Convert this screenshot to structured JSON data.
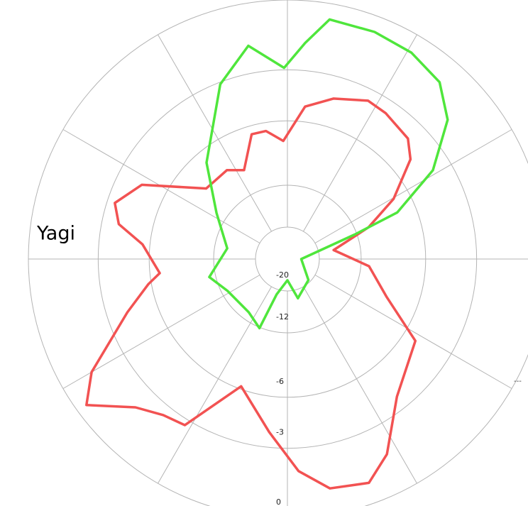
{
  "chart_data": {
    "type": "polar_line",
    "title": "Yagi",
    "annotation": "---",
    "log_scale": true,
    "rlim": [
      -30,
      0
    ],
    "rticks": [
      -20,
      -12,
      -6,
      -3,
      0
    ],
    "thetaticks": [
      0,
      30,
      60,
      90,
      120,
      150,
      180,
      210,
      240,
      270,
      300,
      330
    ],
    "grid": true,
    "series": [
      {
        "color": "#f25252",
        "angles": [
          358,
          6.6,
          16,
          27,
          34,
          45,
          51,
          60.5,
          68.6,
          79,
          95,
          111,
          122.6,
          141.5,
          153,
          160,
          169.5,
          177,
          186,
          200,
          211.7,
          218.5,
          225.7,
          234,
          240,
          251.6,
          259.8,
          263.7,
          275.8,
          281.7,
          288,
          297,
          311,
          325.8,
          334,
          344,
          350.5
        ],
        "values": [
          -7.5,
          -5.0,
          -4.2,
          -3.6,
          -3.7,
          -4.0,
          -4.7,
          -7.2,
          -10.4,
          -16.3,
          -11.0,
          -8.5,
          -5.1,
          -3.7,
          -1.6,
          -0.8,
          -1.0,
          -1.9,
          -3.8,
          -6.2,
          -2.7,
          -2.5,
          -1.9,
          -0.4,
          -1.3,
          -4.1,
          -5.8,
          -6.7,
          -5.5,
          -3.9,
          -3.4,
          -4.4,
          -8.4,
          -8.4,
          -9.2,
          -6.6,
          -6.6
        ]
      },
      {
        "color": "#4fe63c",
        "angles": [
          359,
          4.7,
          10,
          21,
          31,
          40.7,
          49,
          58.6,
          67,
          70,
          90,
          135,
          165,
          180,
          197,
          202,
          216,
          242,
          257,
          280,
          303,
          320,
          339,
          349.6
        ],
        "values": [
          -2.9,
          -1.7,
          -0.6,
          -0.6,
          -0.7,
          -1.0,
          -1.9,
          -4.0,
          -7.4,
          -12.3,
          -28,
          -20.7,
          -17.7,
          -23.9,
          -18.6,
          -11.9,
          -13.1,
          -12.8,
          -11.2,
          -13.8,
          -10.7,
          -6.9,
          -3.1,
          -1.7
        ]
      }
    ]
  }
}
